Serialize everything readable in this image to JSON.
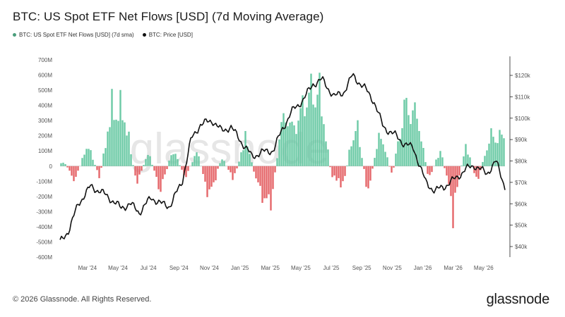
{
  "title": "BTC: US Spot ETF Net Flows [USD] (7d Moving Average)",
  "legend": [
    {
      "label": "BTC: US Spot ETF Net Flows [USD] (7d sma)",
      "color": "#4b9e7c"
    },
    {
      "label": "BTC: Price [USD]",
      "color": "#111111"
    }
  ],
  "watermark": "glassnode",
  "footer": "© 2026 Glassnode. All Rights Reserved.",
  "brand": "glassnode",
  "chart_data": {
    "type": "bar",
    "x_ticks": [
      "Mar '24",
      "May '24",
      "Jul '24",
      "Sep '24",
      "Nov '24",
      "Jan '25",
      "Mar '25",
      "May '25",
      "Jul '25",
      "Sep '25",
      "Nov '25",
      "Jan '26",
      "Mar '26",
      "May '26"
    ],
    "y_left_ticks": [
      "700M",
      "600M",
      "500M",
      "400M",
      "300M",
      "200M",
      "100M",
      "0",
      "-100M",
      "-200M",
      "-300M",
      "-400M",
      "-500M",
      "-600M"
    ],
    "y_left_range": [
      -600,
      700
    ],
    "y_right_ticks": [
      "$120k",
      "$110k",
      "$100k",
      "$90k",
      "$80k",
      "$70k",
      "$60k",
      "$50k",
      "$40k"
    ],
    "y_right_range": [
      40000,
      120000
    ],
    "colors": {
      "positive": "#5cc49c",
      "negative": "#e2555a",
      "price": "#111111"
    },
    "series": [
      {
        "name": "BTC: US Spot ETF Net Flows [USD] (7d sma)",
        "unit": "M USD",
        "t": [
          0.15,
          0.5,
          0.9,
          1.3,
          1.7,
          2.1,
          2.5,
          2.9,
          3.3,
          3.7,
          4.1,
          4.5,
          4.9,
          5.3,
          5.7,
          6.1,
          6.5,
          6.9,
          7.3,
          7.7,
          8.1,
          8.5,
          8.9,
          9.3,
          9.7,
          10.1,
          10.5,
          10.9,
          11.3,
          11.7,
          12.1,
          12.5,
          12.9,
          13.3,
          13.7,
          14.1
        ],
        "values": [
          20,
          -100,
          150,
          -80,
          400,
          380,
          -120,
          90,
          -170,
          120,
          -80,
          100,
          -220,
          60,
          -90,
          200,
          -150,
          -280,
          330,
          250,
          480,
          520,
          -60,
          -130,
          320,
          -180,
          230,
          -70,
          400,
          350,
          -90,
          120,
          -320,
          150,
          -110,
          200
        ]
      },
      {
        "name": "BTC: Price [USD]",
        "unit": "USD",
        "t": [
          0.0,
          0.3,
          0.6,
          1.0,
          1.3,
          1.6,
          2.0,
          2.3,
          2.6,
          3.0,
          3.3,
          3.6,
          4.0,
          4.3,
          4.6,
          5.0,
          5.3,
          5.6,
          6.0,
          6.3,
          6.6,
          7.0,
          7.3,
          7.6,
          8.0,
          8.3,
          8.6,
          9.0,
          9.3,
          9.6,
          10.0,
          10.3,
          10.6,
          11.0,
          11.3,
          11.6,
          12.0,
          12.3,
          12.6,
          13.0,
          13.3,
          13.6,
          14.0,
          14.3,
          14.6
        ],
        "values": [
          42000,
          48000,
          60000,
          68000,
          66000,
          63000,
          58000,
          60000,
          56000,
          63000,
          60000,
          59000,
          70000,
          90000,
          97000,
          99000,
          94000,
          96000,
          88000,
          82000,
          84000,
          85000,
          95000,
          103000,
          109000,
          116000,
          118000,
          110000,
          112000,
          120000,
          114000,
          108000,
          96000,
          92000,
          88000,
          86000,
          70000,
          66000,
          68000,
          72000,
          76000,
          78000,
          74000,
          80000,
          68000
        ]
      }
    ]
  }
}
